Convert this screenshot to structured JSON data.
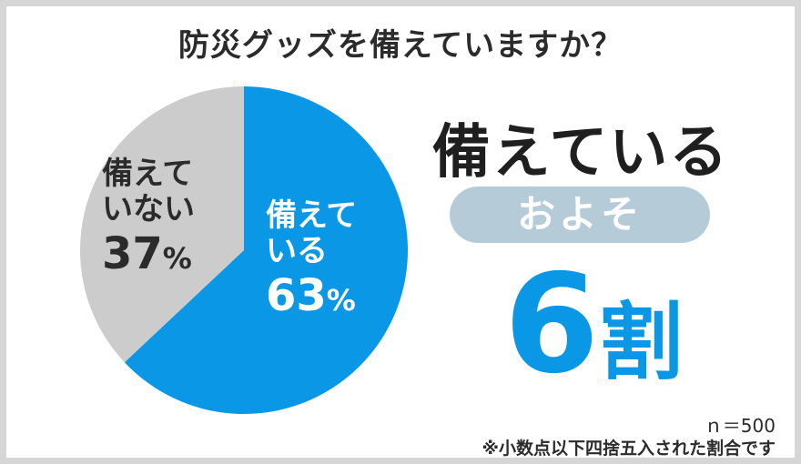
{
  "title": "防災グッズを備えていますか？",
  "chart_data": {
    "type": "pie",
    "slices": [
      {
        "label": "備えている",
        "label_line1": "備えて",
        "label_line2": "いる",
        "value": 63,
        "value_text": "63",
        "unit": "%",
        "color": "#0a97e6"
      },
      {
        "label": "備えていない",
        "label_line1": "備えて",
        "label_line2": "いない",
        "value": 37,
        "value_text": "37",
        "unit": "%",
        "color": "#cccccc"
      }
    ]
  },
  "summary": {
    "headline": "備えている",
    "qualifier": "およそ",
    "ratio_number": "6",
    "ratio_unit": "割"
  },
  "notes": {
    "sample_size": "ｎ＝500",
    "rounding": "※小数点以下四捨五入された割合です"
  }
}
